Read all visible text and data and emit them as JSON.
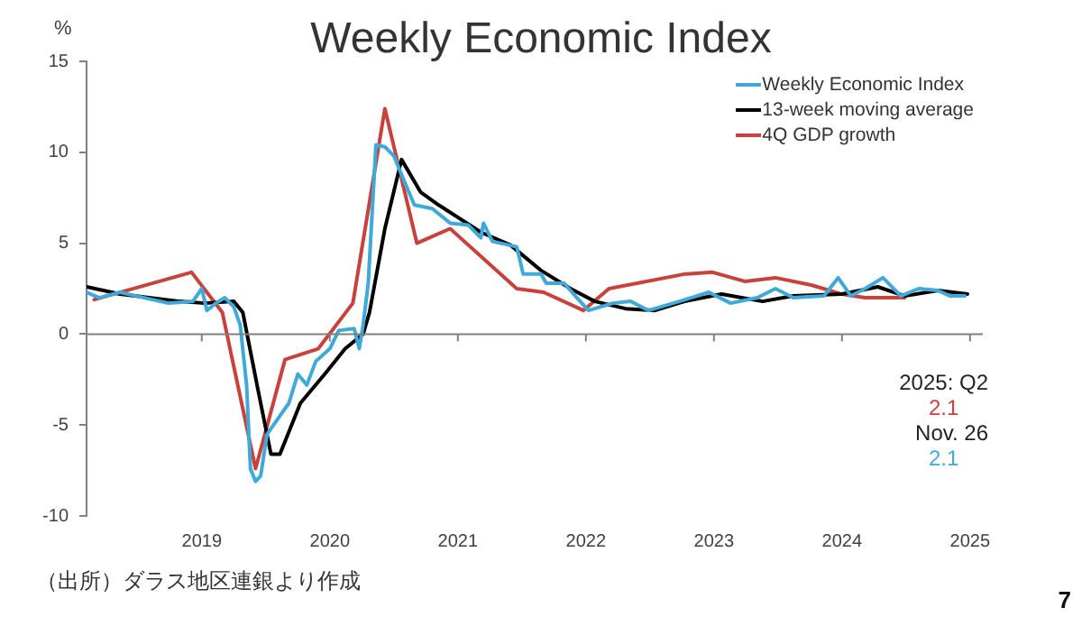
{
  "chart_data": {
    "type": "line",
    "title": "Weekly Economic Index",
    "ylabel": "%",
    "xlim": [
      2018.1,
      2025.1
    ],
    "xticks": [
      {
        "value": 2019,
        "label": "2019"
      },
      {
        "value": 2020,
        "label": "2020"
      },
      {
        "value": 2021,
        "label": "2021"
      },
      {
        "value": 2022,
        "label": "2022"
      },
      {
        "value": 2023,
        "label": "2023"
      },
      {
        "value": 2024,
        "label": "2024"
      },
      {
        "value": 2025,
        "label": "2025"
      }
    ],
    "ylim": [
      -10,
      15
    ],
    "yticks": [
      -10,
      -5,
      0,
      5,
      10,
      15
    ],
    "grid": false,
    "legend": "top right",
    "marker": "none",
    "line_style": "solid",
    "ref_lines": [
      {
        "axis": "y",
        "value": 0,
        "color": "#808080"
      }
    ],
    "series": [
      {
        "name": "Weekly Economic Index",
        "color": "#3fa9d8",
        "x": [
          2018.1,
          2018.2,
          2018.36,
          2018.55,
          2018.74,
          2018.93,
          2019.0,
          2019.04,
          2019.11,
          2019.18,
          2019.25,
          2019.3,
          2019.35,
          2019.38,
          2019.42,
          2019.46,
          2019.51,
          2019.61,
          2019.68,
          2019.75,
          2019.82,
          2019.89,
          2020.0,
          2020.07,
          2020.19,
          2020.23,
          2020.26,
          2020.3,
          2020.36,
          2020.43,
          2020.5,
          2020.57,
          2020.66,
          2020.8,
          2020.94,
          2021.08,
          2021.18,
          2021.2,
          2021.27,
          2021.46,
          2021.51,
          2021.65,
          2021.69,
          2021.83,
          2021.93,
          2022.02,
          2022.21,
          2022.35,
          2022.49,
          2022.73,
          2022.96,
          2023.13,
          2023.34,
          2023.48,
          2023.62,
          2023.86,
          2023.97,
          2024.07,
          2024.18,
          2024.32,
          2024.46,
          2024.6,
          2024.75,
          2024.84,
          2024.96
        ],
        "values": [
          2.3,
          2.0,
          2.3,
          2.0,
          1.7,
          1.8,
          2.5,
          1.3,
          1.7,
          2.0,
          1.5,
          0.5,
          -2.8,
          -7.4,
          -8.1,
          -7.8,
          -5.5,
          -4.5,
          -3.8,
          -2.2,
          -2.8,
          -1.5,
          -0.8,
          0.2,
          0.3,
          -0.8,
          0.5,
          2.8,
          10.4,
          10.3,
          9.8,
          8.6,
          7.1,
          6.9,
          6.1,
          6.0,
          5.3,
          6.1,
          5.1,
          4.8,
          3.3,
          3.3,
          2.8,
          2.8,
          2.0,
          1.3,
          1.7,
          1.8,
          1.3,
          1.8,
          2.3,
          1.7,
          2.0,
          2.5,
          2.0,
          2.1,
          3.1,
          2.1,
          2.5,
          3.1,
          2.1,
          2.5,
          2.4,
          2.1,
          2.1
        ]
      },
      {
        "name": "13-week moving average",
        "color": "#000000",
        "x": [
          2018.1,
          2018.36,
          2018.83,
          2019.02,
          2019.25,
          2019.32,
          2019.44,
          2019.54,
          2019.61,
          2019.77,
          2019.96,
          2020.12,
          2020.26,
          2020.31,
          2020.43,
          2020.56,
          2020.71,
          2020.85,
          2021.18,
          2021.41,
          2021.65,
          2021.88,
          2022.07,
          2022.31,
          2022.54,
          2022.77,
          2023.06,
          2023.38,
          2023.62,
          2024.0,
          2024.28,
          2024.49,
          2024.75,
          2024.98
        ],
        "values": [
          2.6,
          2.2,
          1.8,
          1.7,
          1.8,
          1.2,
          -3.1,
          -6.6,
          -6.6,
          -3.8,
          -2.2,
          -0.8,
          0,
          1.2,
          5.8,
          9.6,
          7.8,
          7.1,
          5.6,
          4.9,
          3.5,
          2.5,
          1.8,
          1.4,
          1.3,
          1.8,
          2.2,
          1.8,
          2.1,
          2.2,
          2.6,
          2.1,
          2.4,
          2.2
        ]
      },
      {
        "name": "4Q GDP growth",
        "color": "#c8413b",
        "x": [
          2018.16,
          2018.92,
          2019.16,
          2019.42,
          2019.65,
          2019.91,
          2020.18,
          2020.43,
          2020.68,
          2020.94,
          2021.46,
          2021.67,
          2021.98,
          2022.18,
          2022.77,
          2022.99,
          2023.24,
          2023.48,
          2023.76,
          2024.0,
          2024.18,
          2024.49
        ],
        "values": [
          1.9,
          3.4,
          1.2,
          -7.4,
          -1.4,
          -0.8,
          1.7,
          12.4,
          5.0,
          5.8,
          2.5,
          2.3,
          1.3,
          2.5,
          3.3,
          3.4,
          2.9,
          3.1,
          2.7,
          2.2,
          2.0,
          2.0
        ]
      }
    ],
    "annotations": [
      "2025: Q2",
      "2.1",
      "Nov. 26",
      "2.1",
      "（出所）ダラス地区連銀より作成",
      "7"
    ]
  }
}
